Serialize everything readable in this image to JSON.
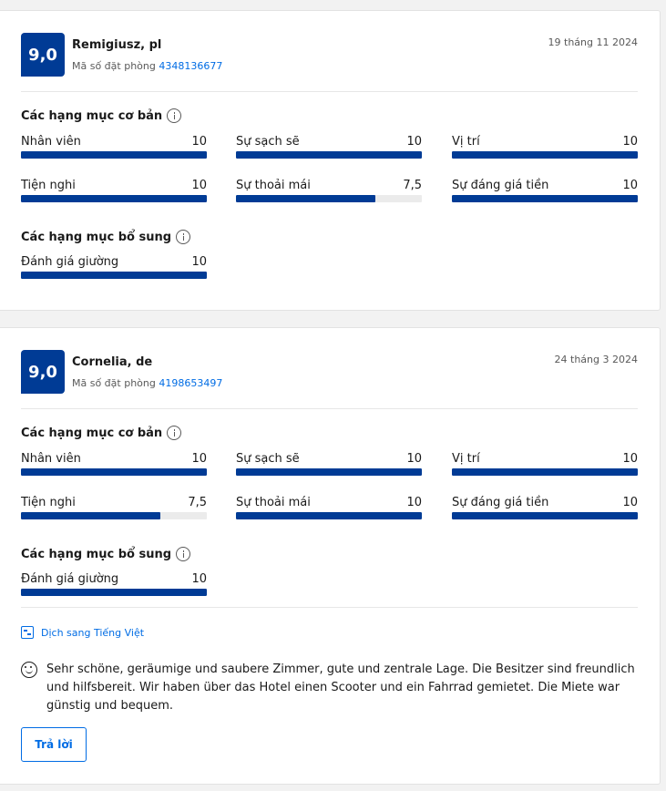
{
  "reviews": [
    {
      "score": "9,0",
      "reviewer": "Remigiusz, pl",
      "booking_label": "Mã số đặt phòng",
      "booking_number": "4348136677",
      "date": "19 tháng 11 2024",
      "basic_title": "Các hạng mục cơ bản",
      "basic": [
        {
          "label": "Nhân viên",
          "value": "10",
          "fraction": 1.0
        },
        {
          "label": "Sự sạch sẽ",
          "value": "10",
          "fraction": 1.0
        },
        {
          "label": "Vị trí",
          "value": "10",
          "fraction": 1.0
        },
        {
          "label": "Tiện nghi",
          "value": "10",
          "fraction": 1.0
        },
        {
          "label": "Sự thoải mái",
          "value": "7,5",
          "fraction": 0.75
        },
        {
          "label": "Sự đáng giá tiền",
          "value": "10",
          "fraction": 1.0
        }
      ],
      "extra_title": "Các hạng mục bổ sung",
      "extra": [
        {
          "label": "Đánh giá giường",
          "value": "10",
          "fraction": 1.0
        }
      ]
    },
    {
      "score": "9,0",
      "reviewer": "Cornelia, de",
      "booking_label": "Mã số đặt phòng",
      "booking_number": "4198653497",
      "date": "24 tháng 3 2024",
      "basic_title": "Các hạng mục cơ bản",
      "basic": [
        {
          "label": "Nhân viên",
          "value": "10",
          "fraction": 1.0
        },
        {
          "label": "Sự sạch sẽ",
          "value": "10",
          "fraction": 1.0
        },
        {
          "label": "Vị trí",
          "value": "10",
          "fraction": 1.0
        },
        {
          "label": "Tiện nghi",
          "value": "7,5",
          "fraction": 0.75
        },
        {
          "label": "Sự thoải mái",
          "value": "10",
          "fraction": 1.0
        },
        {
          "label": "Sự đáng giá tiền",
          "value": "10",
          "fraction": 1.0
        }
      ],
      "extra_title": "Các hạng mục bổ sung",
      "extra": [
        {
          "label": "Đánh giá giường",
          "value": "10",
          "fraction": 1.0
        }
      ],
      "translate_label": "Dịch sang Tiếng Việt",
      "review_text": "Sehr schöne, geräumige und saubere Zimmer, gute und zentrale Lage. Die Besitzer sind freundlich und hilfsbereit. Wir haben über das Hotel einen Scooter und ein Fahrrad gemietet. Die Miete war günstig und bequem.",
      "reply_label": "Trả lời"
    }
  ],
  "icons": {
    "info": "info-icon",
    "translate": "translate-icon",
    "smile": "smile-icon"
  },
  "colors": {
    "score_bg": "#003b95",
    "bar_fill": "#003b95",
    "bar_track": "#ebebeb",
    "link": "#006ce4"
  }
}
